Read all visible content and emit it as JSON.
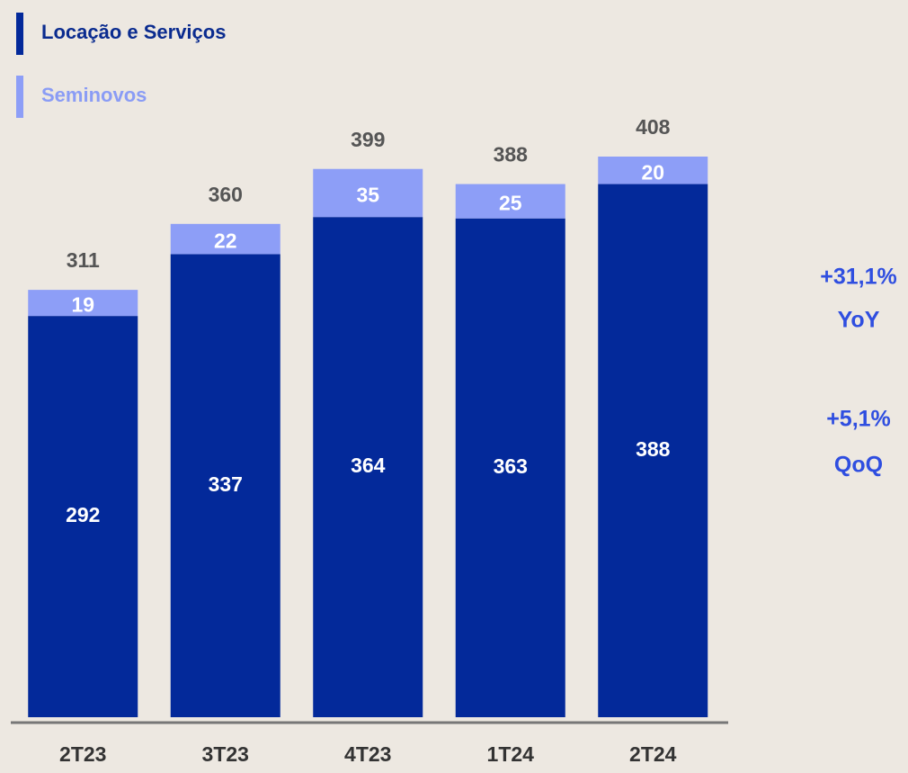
{
  "chart_data": {
    "type": "stacked_bar",
    "categories": [
      "2T23",
      "3T23",
      "4T23",
      "1T24",
      "2T24"
    ],
    "series": [
      {
        "name": "Locação e Serviços",
        "color": "#03299a",
        "values": [
          292,
          337,
          364,
          363,
          388
        ]
      },
      {
        "name": "Seminovos",
        "color": "#8d9ef7",
        "values": [
          19,
          22,
          35,
          25,
          20
        ]
      }
    ],
    "totals": [
      311,
      360,
      399,
      388,
      408
    ],
    "annotations": [
      "+31,1%",
      "YoY",
      "+5,1%",
      "QoQ"
    ]
  }
}
